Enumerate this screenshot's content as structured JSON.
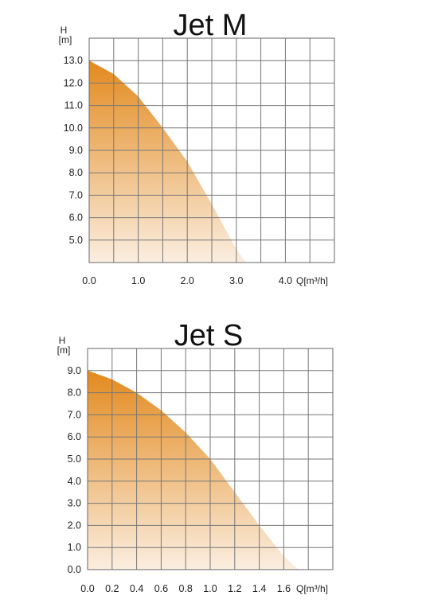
{
  "chart_data": [
    {
      "type": "area",
      "title": "Jet M",
      "ylabel_line1": "H",
      "ylabel_line2": "[m]",
      "xlabel": "Q[m³/h]",
      "x_ticks": [
        "0.0",
        "1.0",
        "2.0",
        "3.0",
        "4.0"
      ],
      "y_ticks": [
        "5.0",
        "6.0",
        "7.0",
        "8.0",
        "9.0",
        "10.0",
        "11.0",
        "12.0",
        "13.0"
      ],
      "xlim": [
        0,
        5
      ],
      "ylim": [
        4,
        14
      ],
      "grid": true,
      "x": [
        0,
        0.5,
        1.0,
        1.5,
        2.0,
        2.5,
        3.0,
        3.2
      ],
      "y": [
        13.0,
        12.4,
        11.4,
        10.0,
        8.5,
        6.6,
        4.6,
        4.0
      ],
      "colors": {
        "top": "#e38a1e",
        "bottom": "#fbeee0"
      }
    },
    {
      "type": "area",
      "title": "Jet S",
      "ylabel_line1": "H",
      "ylabel_line2": "[m]",
      "xlabel": "Q[m³/h]",
      "x_ticks": [
        "0.0",
        "0.2",
        "0.4",
        "0.6",
        "0.8",
        "1.0",
        "1.2",
        "1.4",
        "1.6"
      ],
      "y_ticks": [
        "0.0",
        "1.0",
        "2.0",
        "3.0",
        "4.0",
        "5.0",
        "6.0",
        "7.0",
        "8.0",
        "9.0"
      ],
      "xlim": [
        0,
        2.0
      ],
      "ylim": [
        0,
        10
      ],
      "grid": true,
      "x": [
        0,
        0.2,
        0.4,
        0.6,
        0.8,
        1.0,
        1.2,
        1.4,
        1.6,
        1.72
      ],
      "y": [
        9.0,
        8.6,
        8.0,
        7.2,
        6.2,
        5.0,
        3.5,
        2.0,
        0.6,
        0.0
      ],
      "colors": {
        "top": "#e38a1e",
        "bottom": "#fbeee0"
      }
    }
  ]
}
